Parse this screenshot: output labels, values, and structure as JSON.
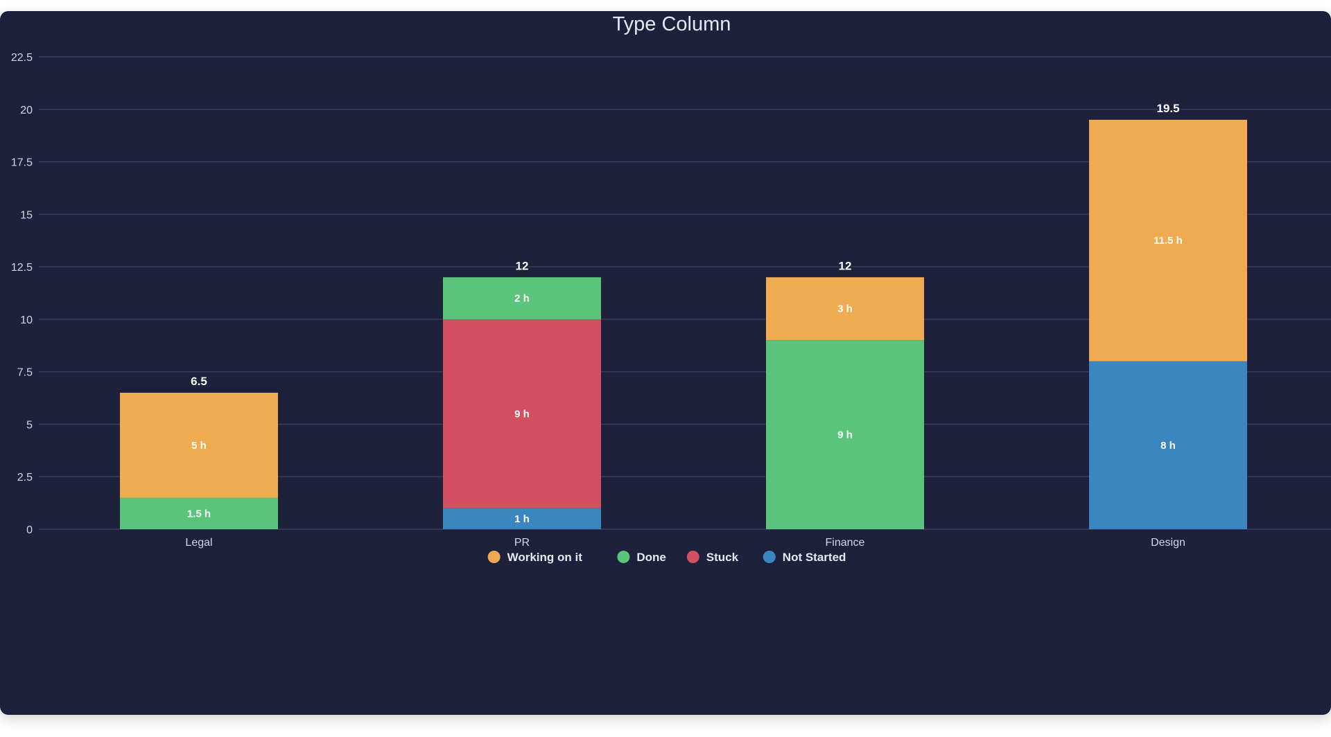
{
  "chart_data": {
    "type": "bar",
    "stacked": true,
    "title": "Type Column",
    "xlabel": "",
    "ylabel": "",
    "categories": [
      "Legal",
      "PR",
      "Finance",
      "Design"
    ],
    "ylim": [
      0,
      22.5
    ],
    "yticks": [
      "0",
      "2.5",
      "5",
      "7.5",
      "10",
      "12.5",
      "15",
      "17.5",
      "20",
      "22.5"
    ],
    "grid": true,
    "legend_position": "bottom",
    "series": [
      {
        "name": "Not Started",
        "color": "#3a86c0",
        "values": [
          0,
          1,
          0,
          8
        ],
        "labels": [
          "",
          "1 h",
          "",
          "8 h"
        ]
      },
      {
        "name": "Done",
        "color": "#5bc47b",
        "values": [
          1.5,
          2,
          9,
          0
        ],
        "labels": [
          "1.5 h",
          "2 h",
          "9 h",
          ""
        ]
      },
      {
        "name": "Stuck",
        "color": "#d2505f",
        "values": [
          0,
          9,
          0,
          0
        ],
        "labels": [
          "",
          "9 h",
          "",
          ""
        ]
      },
      {
        "name": "Working on it",
        "color": "#f0aa50",
        "values": [
          5,
          0,
          3,
          11.5
        ],
        "labels": [
          "5 h",
          "",
          "3 h",
          "11.5 h"
        ]
      }
    ],
    "stack_order": [
      "Not Started",
      "Done",
      "Stuck",
      "Working on it"
    ],
    "segment_order_by_category": [
      [
        "Done",
        "Working on it"
      ],
      [
        "Not Started",
        "Stuck",
        "Done"
      ],
      [
        "Done",
        "Working on it"
      ],
      [
        "Not Started",
        "Working on it"
      ]
    ],
    "totals": [
      "6.5",
      "12",
      "12",
      "19.5"
    ],
    "legend": [
      "Working on it",
      "Done",
      "Stuck",
      "Not Started"
    ]
  }
}
